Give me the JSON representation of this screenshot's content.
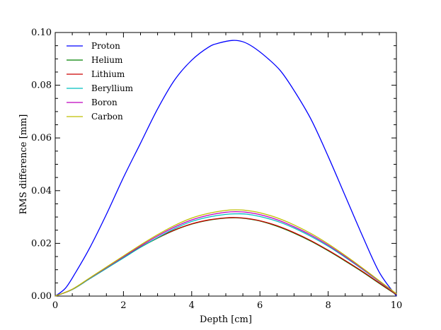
{
  "chart_data": {
    "type": "line",
    "title": "",
    "xlabel": "Depth [cm]",
    "ylabel": "RMS difference [mm]",
    "xlim": [
      0,
      10
    ],
    "ylim": [
      0,
      0.1
    ],
    "xticks": [
      0,
      2,
      4,
      6,
      8,
      10
    ],
    "xtick_labels": [
      "0",
      "2",
      "4",
      "6",
      "8",
      "10"
    ],
    "yticks": [
      0,
      0.02,
      0.04,
      0.06,
      0.08,
      0.1
    ],
    "ytick_labels": [
      "0.00",
      "0.02",
      "0.04",
      "0.06",
      "0.08",
      "0.10"
    ],
    "grid": false,
    "legend_position": "top-left",
    "series": [
      {
        "name": "Proton",
        "color": "#0000ff",
        "x": [
          0,
          0.3,
          0.6,
          1.0,
          1.5,
          2.0,
          2.5,
          3.0,
          3.5,
          4.0,
          4.5,
          4.8,
          5.2,
          5.5,
          5.8,
          6.2,
          6.6,
          7.0,
          7.5,
          8.0,
          8.5,
          9.0,
          9.5,
          10.0
        ],
        "y": [
          0,
          0.003,
          0.009,
          0.018,
          0.031,
          0.045,
          0.058,
          0.071,
          0.082,
          0.0895,
          0.0945,
          0.096,
          0.097,
          0.0965,
          0.0945,
          0.0905,
          0.0855,
          0.078,
          0.067,
          0.053,
          0.038,
          0.023,
          0.009,
          0
        ]
      },
      {
        "name": "Helium",
        "color": "#008000",
        "x": [
          0,
          0.5,
          1.0,
          1.5,
          2.0,
          2.5,
          3.0,
          3.5,
          4.0,
          4.5,
          5.0,
          5.3,
          5.6,
          6.0,
          6.5,
          7.0,
          7.5,
          8.0,
          8.5,
          9.0,
          9.5,
          10.0
        ],
        "y": [
          0,
          0.0025,
          0.0065,
          0.0105,
          0.0145,
          0.0185,
          0.022,
          0.025,
          0.0273,
          0.0288,
          0.0296,
          0.0297,
          0.0294,
          0.0285,
          0.0265,
          0.0239,
          0.0208,
          0.0172,
          0.0133,
          0.0092,
          0.0048,
          0.0005
        ]
      },
      {
        "name": "Lithium",
        "color": "#cc0000",
        "x": [
          0,
          0.5,
          1.0,
          1.5,
          2.0,
          2.5,
          3.0,
          3.5,
          4.0,
          4.5,
          5.0,
          5.3,
          5.6,
          6.0,
          6.5,
          7.0,
          7.5,
          8.0,
          8.5,
          9.0,
          9.5,
          10.0
        ],
        "y": [
          0,
          0.0025,
          0.0066,
          0.0106,
          0.0146,
          0.0186,
          0.0221,
          0.0251,
          0.0274,
          0.0289,
          0.0297,
          0.0298,
          0.0295,
          0.0286,
          0.0267,
          0.0241,
          0.021,
          0.0174,
          0.0135,
          0.0094,
          0.005,
          0.0006
        ]
      },
      {
        "name": "Beryllium",
        "color": "#00bfbf",
        "x": [
          0,
          0.5,
          1.0,
          1.5,
          2.0,
          2.5,
          3.0,
          3.5,
          4.0,
          4.5,
          5.0,
          5.3,
          5.6,
          6.0,
          6.5,
          7.0,
          7.5,
          8.0,
          8.5,
          9.0,
          9.5,
          10.0
        ],
        "y": [
          0,
          0.0025,
          0.0065,
          0.0105,
          0.0145,
          0.0185,
          0.0222,
          0.0256,
          0.0283,
          0.03,
          0.031,
          0.0312,
          0.0311,
          0.0302,
          0.0284,
          0.0258,
          0.0226,
          0.0189,
          0.0147,
          0.0102,
          0.0055,
          0.0008
        ]
      },
      {
        "name": "Boron",
        "color": "#bf00bf",
        "x": [
          0,
          0.5,
          1.0,
          1.5,
          2.0,
          2.5,
          3.0,
          3.5,
          4.0,
          4.5,
          5.0,
          5.3,
          5.6,
          6.0,
          6.5,
          7.0,
          7.5,
          8.0,
          8.5,
          9.0,
          9.5,
          10.0
        ],
        "y": [
          0,
          0.0026,
          0.0067,
          0.0108,
          0.0149,
          0.019,
          0.0228,
          0.0262,
          0.0289,
          0.0307,
          0.0318,
          0.032,
          0.0318,
          0.0309,
          0.029,
          0.0263,
          0.0231,
          0.0193,
          0.015,
          0.0104,
          0.0056,
          0.0008
        ]
      },
      {
        "name": "Carbon",
        "color": "#bfbf00",
        "x": [
          0,
          0.5,
          1.0,
          1.5,
          2.0,
          2.5,
          3.0,
          3.5,
          4.0,
          4.5,
          5.0,
          5.3,
          5.6,
          6.0,
          6.5,
          7.0,
          7.5,
          8.0,
          8.5,
          9.0,
          9.5,
          10.0
        ],
        "y": [
          0,
          0.0026,
          0.0068,
          0.011,
          0.0152,
          0.0194,
          0.0233,
          0.0268,
          0.0296,
          0.0314,
          0.0325,
          0.0327,
          0.0325,
          0.0316,
          0.0297,
          0.027,
          0.0237,
          0.0198,
          0.0154,
          0.0107,
          0.0058,
          0.0009
        ]
      }
    ]
  }
}
